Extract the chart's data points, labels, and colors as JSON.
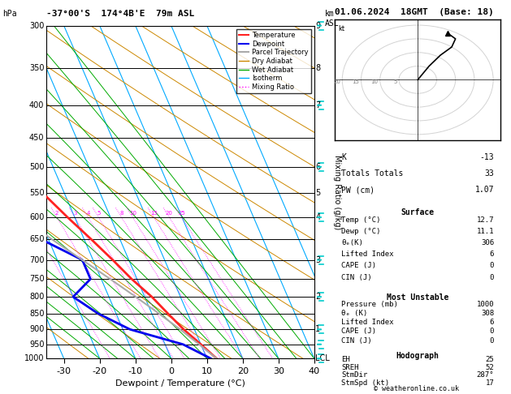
{
  "title_left": "-37°00'S  174°4B'E  79m ASL",
  "title_right": "01.06.2024  18GMT  (Base: 18)",
  "xlabel": "Dewpoint / Temperature (°C)",
  "ylabel_left": "hPa",
  "temp_xlim": [
    -35,
    40
  ],
  "temp_data": [
    [
      1000,
      12.7
    ],
    [
      950,
      10.0
    ],
    [
      900,
      7.0
    ],
    [
      850,
      4.5
    ],
    [
      800,
      2.0
    ],
    [
      750,
      -1.5
    ],
    [
      700,
      -4.5
    ],
    [
      650,
      -8.0
    ],
    [
      600,
      -12.0
    ],
    [
      550,
      -16.0
    ],
    [
      500,
      -20.5
    ],
    [
      450,
      -25.0
    ],
    [
      400,
      -32.0
    ],
    [
      350,
      -42.0
    ],
    [
      300,
      -52.0
    ]
  ],
  "dewp_data": [
    [
      1000,
      11.1
    ],
    [
      950,
      5.0
    ],
    [
      900,
      -8.0
    ],
    [
      850,
      -15.0
    ],
    [
      800,
      -20.0
    ],
    [
      750,
      -13.0
    ],
    [
      700,
      -13.0
    ],
    [
      650,
      -22.0
    ],
    [
      600,
      -30.0
    ],
    [
      550,
      -38.0
    ],
    [
      500,
      -17.0
    ],
    [
      450,
      -19.0
    ],
    [
      400,
      -19.0
    ],
    [
      350,
      -50.0
    ],
    [
      300,
      -52.0
    ]
  ],
  "parcel_data": [
    [
      1000,
      12.7
    ],
    [
      950,
      9.5
    ],
    [
      900,
      6.0
    ],
    [
      850,
      2.0
    ],
    [
      800,
      -2.5
    ],
    [
      750,
      -7.5
    ],
    [
      700,
      -13.0
    ],
    [
      650,
      -19.0
    ],
    [
      600,
      -25.0
    ],
    [
      550,
      -31.0
    ],
    [
      500,
      -37.5
    ],
    [
      450,
      -44.0
    ],
    [
      400,
      -51.0
    ]
  ],
  "temp_color": "#ff2222",
  "dewp_color": "#0000ee",
  "parcel_color": "#aaaaaa",
  "dry_adiabat_color": "#cc8800",
  "wet_adiabat_color": "#00aa00",
  "isotherm_color": "#00aaff",
  "mixing_ratio_color": "#ff00ff",
  "background_color": "#ffffff",
  "mixing_ratio_lines": [
    1,
    2,
    3,
    4,
    5,
    8,
    10,
    15,
    20,
    25
  ],
  "km_map": {
    "9": 300,
    "8": 350,
    "7": 400,
    "6": 500,
    "5": 550,
    "4": 600,
    "3": 700,
    "2": 800,
    "1": 900
  },
  "indices": {
    "K": "-13",
    "Totals Totals": "33",
    "PW (cm)": "1.07",
    "Surface_Temp": "12.7",
    "Surface_Dewp": "11.1",
    "Surface_theta_e": "306",
    "Surface_LiftedIndex": "6",
    "Surface_CAPE": "0",
    "Surface_CIN": "0",
    "MU_Pressure": "1000",
    "MU_theta_e": "308",
    "MU_LiftedIndex": "6",
    "MU_CAPE": "0",
    "MU_CIN": "0",
    "EH": "25",
    "SREH": "52",
    "StmDir": "287°",
    "StmSpd": "17"
  },
  "copyright": "© weatheronline.co.uk",
  "lcl_pressure": 1000,
  "wind_barb_pressures": [
    300,
    400,
    500,
    600,
    700,
    800,
    900,
    950,
    1000
  ],
  "wind_barb_color": "#00cccc"
}
